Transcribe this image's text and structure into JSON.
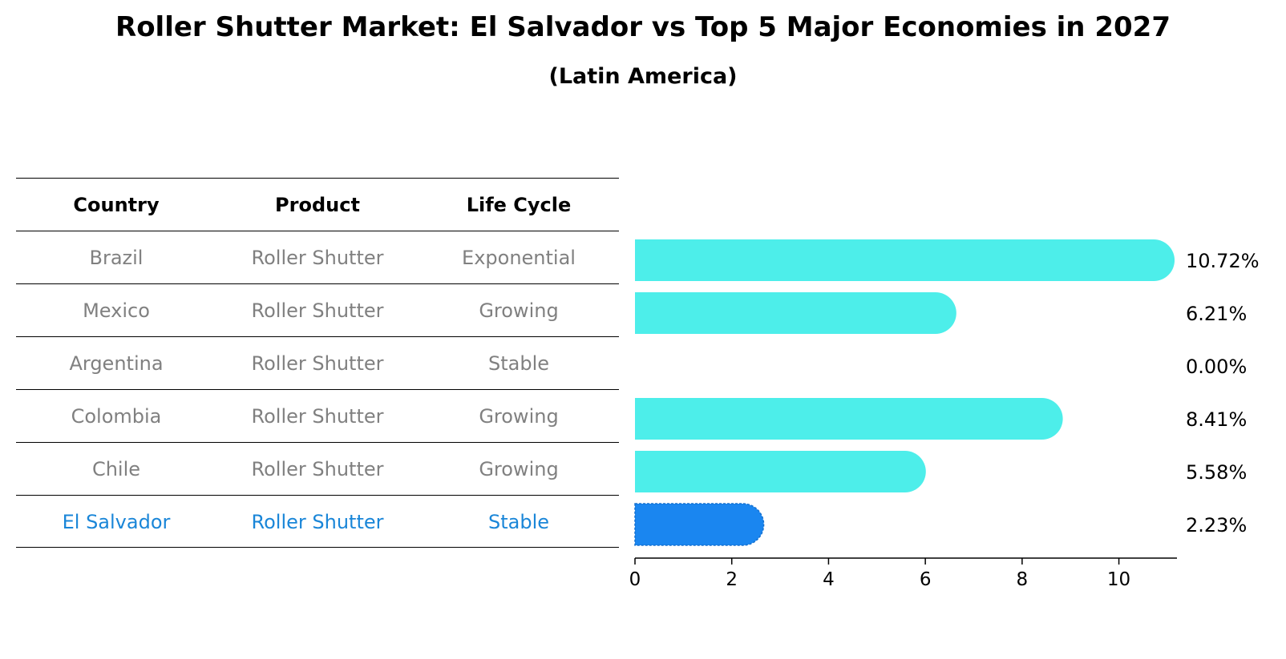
{
  "title": "Roller Shutter Market: El Salvador vs Top 5 Major Economies in 2027",
  "subtitle": "(Latin America)",
  "table": {
    "headers": [
      "Country",
      "Product",
      "Life Cycle"
    ],
    "rows": [
      [
        "Brazil",
        "Roller Shutter",
        "Exponential"
      ],
      [
        "Mexico",
        "Roller Shutter",
        "Growing"
      ],
      [
        "Argentina",
        "Roller Shutter",
        "Stable"
      ],
      [
        "Colombia",
        "Roller Shutter",
        "Growing"
      ],
      [
        "Chile",
        "Roller Shutter",
        "Growing"
      ],
      [
        "El Salvador",
        "Roller Shutter",
        "Stable"
      ]
    ]
  },
  "colors": {
    "bar": "#4deeea",
    "highlight_bar": "#1a86f0",
    "highlight_text": "#1a86d8",
    "muted_text": "#808080"
  },
  "chart_data": {
    "type": "bar",
    "orientation": "horizontal",
    "categories": [
      "Brazil",
      "Mexico",
      "Argentina",
      "Colombia",
      "Chile",
      "El Salvador"
    ],
    "values": [
      10.72,
      6.21,
      0.0,
      8.41,
      5.58,
      2.23
    ],
    "value_labels": [
      "10.72%",
      "6.21%",
      "0.00%",
      "8.41%",
      "5.58%",
      "2.23%"
    ],
    "highlight": "El Salvador",
    "xlim": [
      0,
      11.2
    ],
    "xticks": [
      0,
      2,
      4,
      6,
      8,
      10
    ],
    "xlabel": "",
    "ylabel": ""
  }
}
